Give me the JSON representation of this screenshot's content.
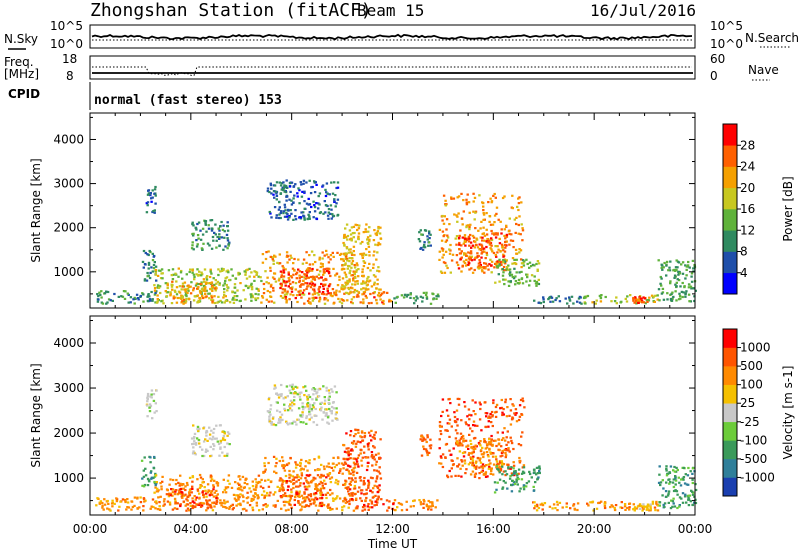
{
  "header": {
    "title": "Zhongshan Station (fitACF)",
    "beam": "Beam 15",
    "date": "16/Jul/2016"
  },
  "status_panels": {
    "nsky": {
      "label": "N.Sky",
      "y_ticks": [
        "10^5",
        "10^0"
      ],
      "right_ticks": [
        "10^5",
        "10^0"
      ],
      "right_label": "N.Search",
      "color": "#000000"
    },
    "freq": {
      "label_line1": "Freq.",
      "label_line2": "[MHz]",
      "y_ticks": [
        "18",
        "8"
      ],
      "right_ticks": [
        "60",
        "0"
      ],
      "right_label": "Nave",
      "color": "#000000"
    },
    "cpid": {
      "label": "CPID",
      "value": "normal (fast stereo) 153"
    }
  },
  "chart_data": [
    {
      "type": "heatmap",
      "id": "power",
      "ylabel": "Slant Range [km]",
      "xlim": [
        0,
        24
      ],
      "ylim": [
        180,
        4600
      ],
      "y_ticks": [
        1000,
        2000,
        3000,
        4000
      ],
      "colorbar": {
        "label": "Power [dB]",
        "range": [
          0,
          32
        ],
        "ticks": [
          4,
          8,
          12,
          16,
          20,
          24,
          28
        ],
        "colors": [
          "#0000ff",
          "#1f4faa",
          "#2f8a60",
          "#5fb23a",
          "#c8c820",
          "#f5a000",
          "#ff6000",
          "#ff0000"
        ]
      },
      "regions": [
        {
          "t": [
            0.2,
            2.8
          ],
          "r": [
            300,
            600
          ],
          "level": 10
        },
        {
          "t": [
            2.0,
            2.6
          ],
          "r": [
            800,
            1500
          ],
          "level": 9
        },
        {
          "t": [
            2.2,
            2.6
          ],
          "r": [
            2300,
            3000
          ],
          "level": 7
        },
        {
          "t": [
            2.5,
            6.8
          ],
          "r": [
            300,
            1100
          ],
          "level": 17
        },
        {
          "t": [
            3.0,
            5.0
          ],
          "r": [
            350,
            800
          ],
          "level": 22
        },
        {
          "t": [
            4.0,
            5.5
          ],
          "r": [
            1500,
            2200
          ],
          "level": 10
        },
        {
          "t": [
            6.8,
            10.5
          ],
          "r": [
            300,
            1500
          ],
          "level": 22
        },
        {
          "t": [
            7.5,
            9.5
          ],
          "r": [
            400,
            1100
          ],
          "level": 27
        },
        {
          "t": [
            7.0,
            9.8
          ],
          "r": [
            2200,
            3100
          ],
          "level": 7
        },
        {
          "t": [
            10.0,
            11.5
          ],
          "r": [
            500,
            2100
          ],
          "level": 20
        },
        {
          "t": [
            10.5,
            12.0
          ],
          "r": [
            300,
            600
          ],
          "level": 25
        },
        {
          "t": [
            12.0,
            13.8
          ],
          "r": [
            300,
            550
          ],
          "level": 12
        },
        {
          "t": [
            13.0,
            13.5
          ],
          "r": [
            1500,
            2000
          ],
          "level": 9
        },
        {
          "t": [
            13.8,
            17.2
          ],
          "r": [
            1000,
            2800
          ],
          "level": 23
        },
        {
          "t": [
            14.5,
            16.5
          ],
          "r": [
            1100,
            1900
          ],
          "level": 27
        },
        {
          "t": [
            16.0,
            17.8
          ],
          "r": [
            700,
            1300
          ],
          "level": 14
        },
        {
          "t": [
            17.5,
            19.5
          ],
          "r": [
            300,
            500
          ],
          "level": 8
        },
        {
          "t": [
            19.5,
            22.5
          ],
          "r": [
            300,
            500
          ],
          "level": 17
        },
        {
          "t": [
            21.5,
            22.2
          ],
          "r": [
            300,
            450
          ],
          "level": 26
        },
        {
          "t": [
            22.5,
            24.0
          ],
          "r": [
            350,
            1300
          ],
          "level": 12
        }
      ]
    },
    {
      "type": "heatmap",
      "id": "velocity",
      "xlabel": "Time UT",
      "ylabel": "Slant Range [km]",
      "xlim": [
        0,
        24
      ],
      "ylim": [
        180,
        4600
      ],
      "x_ticks": [
        "00:00",
        "04:00",
        "08:00",
        "12:00",
        "16:00",
        "20:00",
        "00:00"
      ],
      "y_ticks": [
        1000,
        2000,
        3000,
        4000
      ],
      "colorbar": {
        "label": "Velocity [m s-1]",
        "bin_labels": [
          "1000",
          "500",
          "100",
          "25",
          "-25",
          "-100",
          "-500",
          "-1000"
        ],
        "colors": [
          "#1a3fb0",
          "#2f7f9a",
          "#3a9a5a",
          "#6ccc3a",
          "#c8c8c8",
          "#f5c000",
          "#ff8a00",
          "#ff5500",
          "#ff0000"
        ]
      },
      "regions": [
        {
          "t": [
            0.2,
            2.8
          ],
          "r": [
            300,
            600
          ],
          "level": 6
        },
        {
          "t": [
            2.0,
            2.6
          ],
          "r": [
            800,
            1500
          ],
          "level": 2
        },
        {
          "t": [
            2.2,
            2.6
          ],
          "r": [
            2300,
            3000
          ],
          "level": 4
        },
        {
          "t": [
            2.5,
            6.8
          ],
          "r": [
            300,
            1100
          ],
          "level": 6
        },
        {
          "t": [
            3.0,
            5.0
          ],
          "r": [
            350,
            800
          ],
          "level": 7
        },
        {
          "t": [
            4.0,
            5.5
          ],
          "r": [
            1500,
            2200
          ],
          "level": 4
        },
        {
          "t": [
            6.8,
            10.5
          ],
          "r": [
            300,
            1500
          ],
          "level": 6
        },
        {
          "t": [
            7.5,
            9.5
          ],
          "r": [
            400,
            1100
          ],
          "level": 7
        },
        {
          "t": [
            7.0,
            9.8
          ],
          "r": [
            2200,
            3100
          ],
          "level": 4
        },
        {
          "t": [
            10.0,
            11.5
          ],
          "r": [
            500,
            2100
          ],
          "level": 7
        },
        {
          "t": [
            10.5,
            12.0
          ],
          "r": [
            300,
            600
          ],
          "level": 7
        },
        {
          "t": [
            12.0,
            13.8
          ],
          "r": [
            300,
            550
          ],
          "level": 6
        },
        {
          "t": [
            13.0,
            13.5
          ],
          "r": [
            1500,
            2000
          ],
          "level": 7
        },
        {
          "t": [
            13.8,
            17.2
          ],
          "r": [
            1000,
            2800
          ],
          "level": 7
        },
        {
          "t": [
            14.5,
            16.5
          ],
          "r": [
            1100,
            1900
          ],
          "level": 6
        },
        {
          "t": [
            16.0,
            17.8
          ],
          "r": [
            700,
            1300
          ],
          "level": 2
        },
        {
          "t": [
            17.5,
            19.5
          ],
          "r": [
            300,
            500
          ],
          "level": 6
        },
        {
          "t": [
            19.5,
            22.5
          ],
          "r": [
            300,
            500
          ],
          "level": 6
        },
        {
          "t": [
            21.5,
            22.2
          ],
          "r": [
            300,
            450
          ],
          "level": 5
        },
        {
          "t": [
            22.5,
            24.0
          ],
          "r": [
            350,
            1300
          ],
          "level": 2
        }
      ]
    }
  ]
}
